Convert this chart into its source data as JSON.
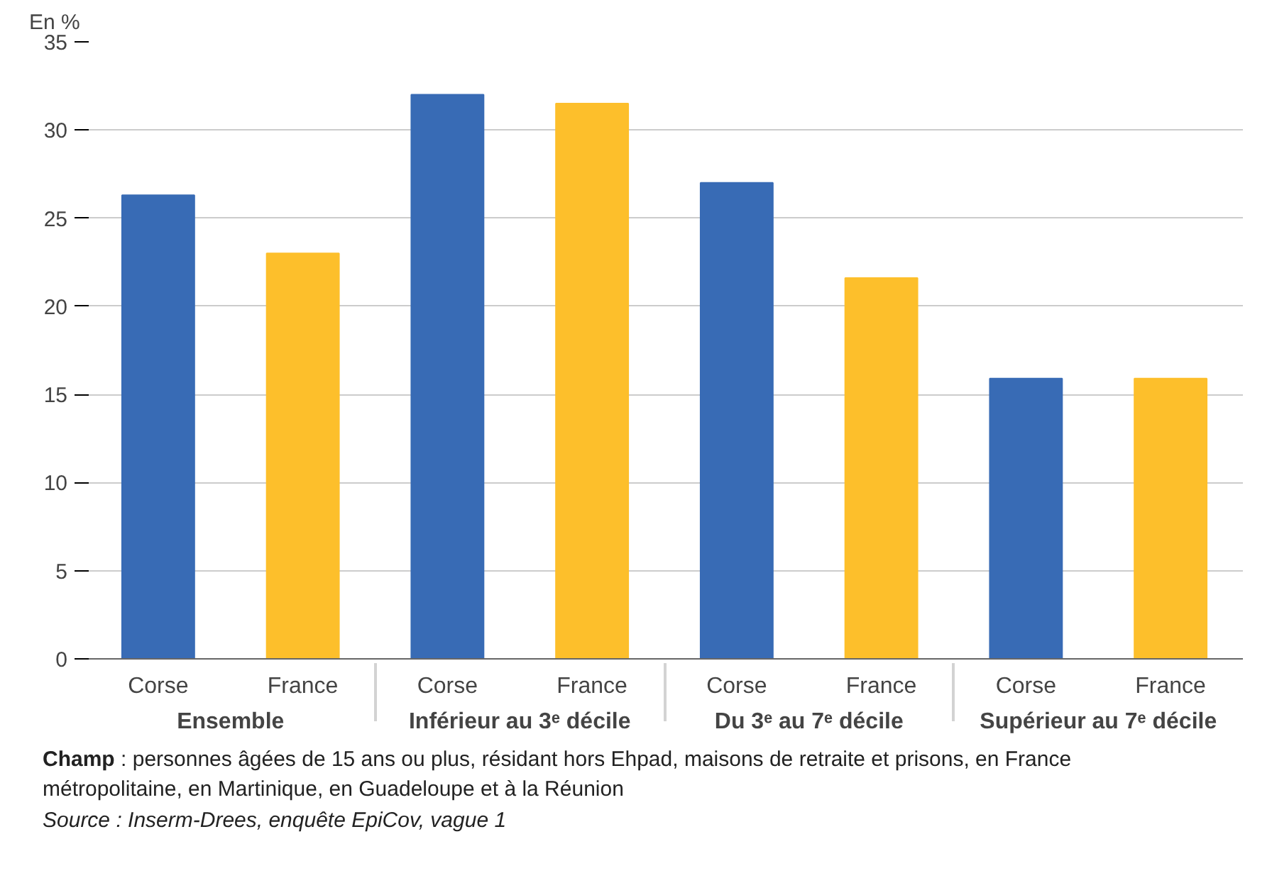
{
  "chart_data": {
    "type": "bar",
    "ylabel": "En %",
    "categories": [
      "Ensemble",
      "Inférieur au 3ᵉ décile",
      "Du 3ᵉ au 7ᵉ décile",
      "Supérieur au 7ᵉ décile"
    ],
    "series": [
      {
        "name": "Corse",
        "color": "#386bb5",
        "values": [
          26.3,
          32.0,
          27.0,
          15.9
        ]
      },
      {
        "name": "France",
        "color": "#fdbf2b",
        "values": [
          23.0,
          31.5,
          21.6,
          15.9
        ]
      }
    ],
    "ylim": [
      0,
      35
    ],
    "yticks": [
      0,
      5,
      10,
      15,
      20,
      25,
      30,
      35
    ],
    "grid": "y",
    "annotations": [
      "Champ : personnes âgées de 15 ans ou plus, résidant hors Ehpad, maisons de retraite et prisons, en France métropolitaine, en Martinique, en Guadeloupe et à la Réunion",
      "Source : Inserm-Drees, enquête EpiCov, vague 1"
    ]
  }
}
